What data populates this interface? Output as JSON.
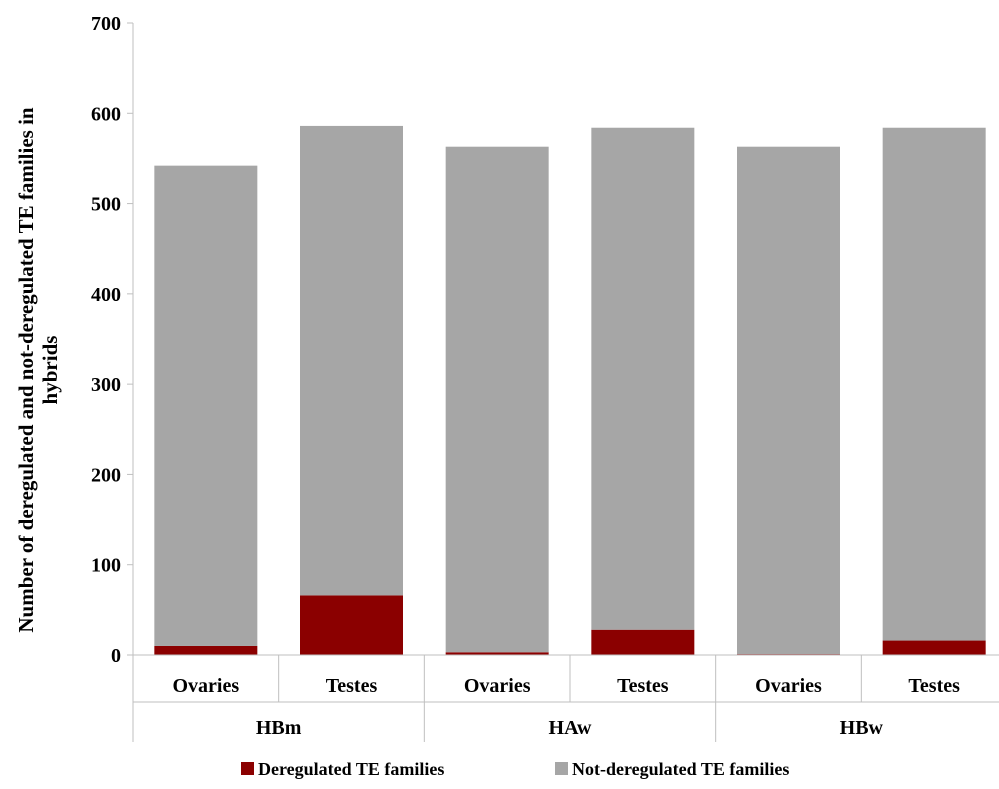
{
  "chart_data": {
    "type": "bar",
    "stacked": true,
    "groups": [
      {
        "label": "HBm",
        "categories": [
          "Ovaries",
          "Testes"
        ]
      },
      {
        "label": "HAw",
        "categories": [
          "Ovaries",
          "Testes"
        ]
      },
      {
        "label": "HBw",
        "categories": [
          "Ovaries",
          "Testes"
        ]
      }
    ],
    "series": [
      {
        "name": "Deregulated TE families",
        "color": "#8b0000",
        "values": [
          10,
          66,
          3,
          28,
          1,
          16
        ]
      },
      {
        "name": "Not-deregulated TE families",
        "color": "#a6a6a6",
        "values": [
          532,
          520,
          560,
          556,
          562,
          568
        ]
      }
    ],
    "ylabel_lines": [
      "Number of deregulated and not-deregulated TE families in",
      "hybrids"
    ],
    "ylim": [
      0,
      700
    ],
    "yticks": [
      0,
      100,
      200,
      300,
      400,
      500,
      600,
      700
    ],
    "grid": false,
    "legend_position": "bottom"
  }
}
